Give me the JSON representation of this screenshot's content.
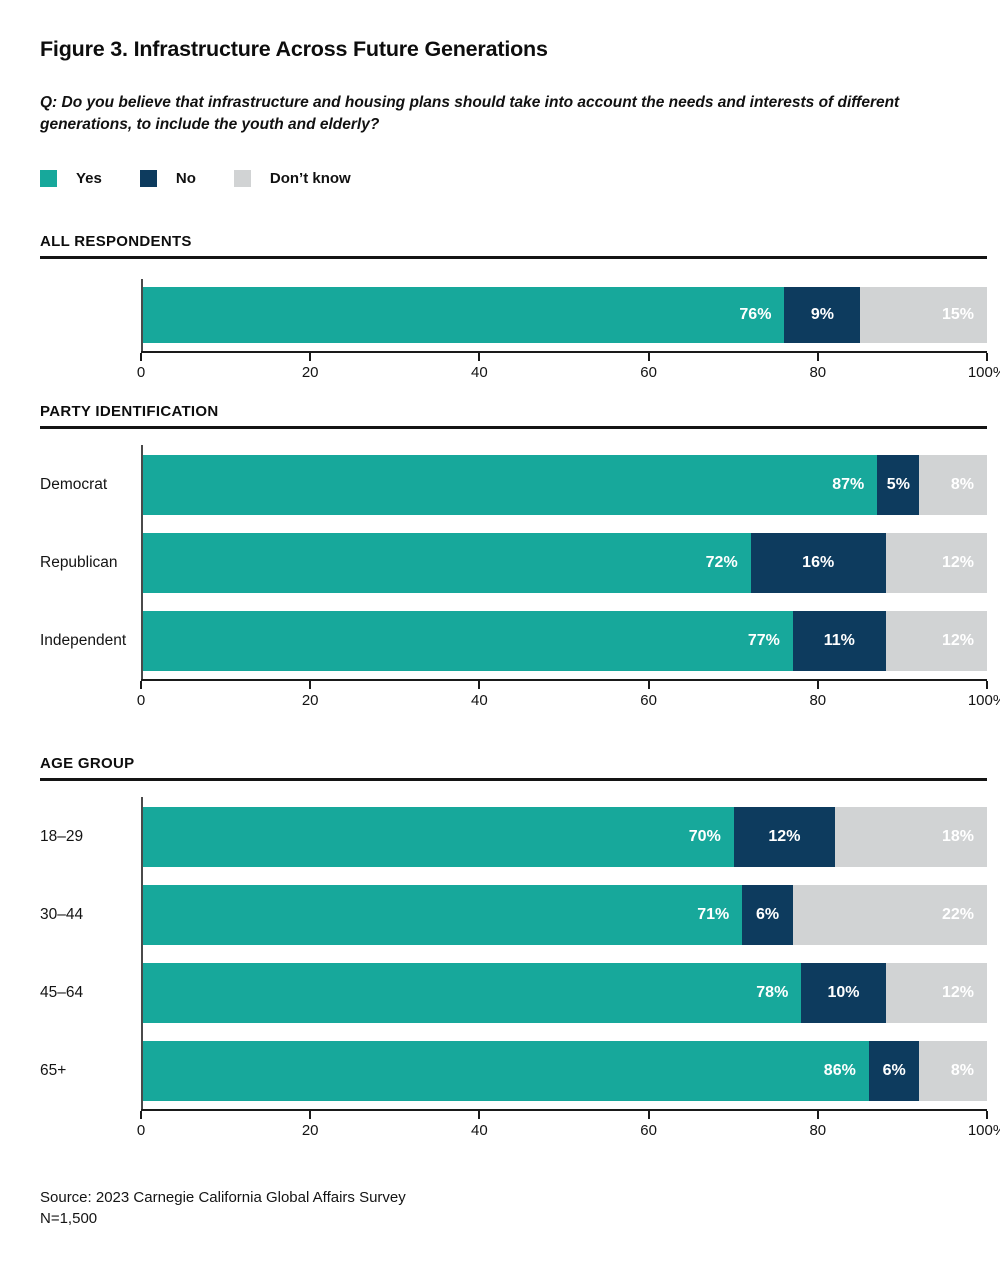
{
  "page": {
    "title": "Figure 3. Infrastructure Across Future Generations",
    "question": "Q: Do you believe that infrastructure and housing plans should take into account the needs and interests of different generations, to include the youth and elderly?",
    "source": "Source: 2023 Carnegie California Global Affairs Survey",
    "sample_size": "N=1,500"
  },
  "colors": {
    "yes": "#17A89B",
    "no": "#0D3B5E",
    "dont_know": "#D1D3D4"
  },
  "legend": [
    {
      "key": "yes",
      "label": "Yes"
    },
    {
      "key": "no",
      "label": "No"
    },
    {
      "key": "dont_know",
      "label": "Don’t know"
    }
  ],
  "chart_data": [
    {
      "type": "bar",
      "orientation": "horizontal",
      "stacked": true,
      "section": "ALL RESPONDENTS",
      "categories": [
        ""
      ],
      "series": [
        {
          "name": "Yes",
          "key": "yes",
          "values": [
            76
          ]
        },
        {
          "name": "No",
          "key": "no",
          "values": [
            9
          ]
        },
        {
          "name": "Don’t know",
          "key": "dont_know",
          "values": [
            15
          ]
        }
      ],
      "x_ticks": [
        "0",
        "20",
        "40",
        "60",
        "80",
        "100%"
      ],
      "xlim": [
        0,
        100
      ],
      "grid": false,
      "legend_position": "top"
    },
    {
      "type": "bar",
      "orientation": "horizontal",
      "stacked": true,
      "section": "PARTY IDENTIFICATION",
      "categories": [
        "Democrat",
        "Republican",
        "Independent"
      ],
      "series": [
        {
          "name": "Yes",
          "key": "yes",
          "values": [
            87,
            72,
            77
          ]
        },
        {
          "name": "No",
          "key": "no",
          "values": [
            5,
            16,
            11
          ]
        },
        {
          "name": "Don’t know",
          "key": "dont_know",
          "values": [
            8,
            12,
            12
          ]
        }
      ],
      "x_ticks": [
        "0",
        "20",
        "40",
        "60",
        "80",
        "100%"
      ],
      "xlim": [
        0,
        100
      ],
      "grid": false,
      "legend_position": "top"
    },
    {
      "type": "bar",
      "orientation": "horizontal",
      "stacked": true,
      "section": "AGE GROUP",
      "categories": [
        "18–29",
        "30–44",
        "45–64",
        "65+"
      ],
      "series": [
        {
          "name": "Yes",
          "key": "yes",
          "values": [
            70,
            71,
            78,
            86
          ]
        },
        {
          "name": "No",
          "key": "no",
          "values": [
            12,
            6,
            10,
            6
          ]
        },
        {
          "name": "Don’t know",
          "key": "dont_know",
          "values": [
            18,
            22,
            12,
            8
          ]
        }
      ],
      "x_ticks": [
        "0",
        "20",
        "40",
        "60",
        "80",
        "100%"
      ],
      "xlim": [
        0,
        100
      ],
      "grid": false,
      "legend_position": "top"
    }
  ]
}
